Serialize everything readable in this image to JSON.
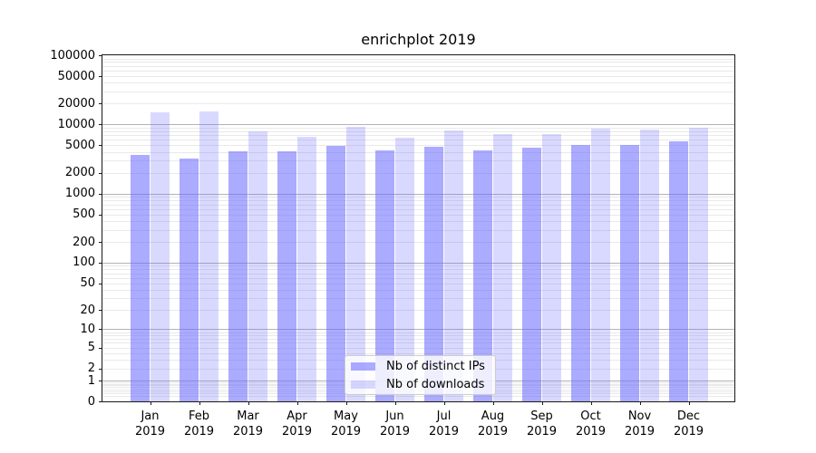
{
  "title": "enrichplot 2019",
  "chart_data": {
    "type": "bar",
    "title": "enrichplot 2019",
    "categories": [
      "Jan",
      "Feb",
      "Mar",
      "Apr",
      "May",
      "Jun",
      "Jul",
      "Aug",
      "Sep",
      "Oct",
      "Nov",
      "Dec"
    ],
    "year_label": "2019",
    "series": [
      {
        "name": "Nb of distinct IPs",
        "color": "#6666ff",
        "alpha": 0.55,
        "values": [
          3610,
          3270,
          4120,
          4120,
          4990,
          4200,
          4730,
          4290,
          4640,
          5140,
          5140,
          5680
        ]
      },
      {
        "name": "Nb of downloads",
        "color": "#6666ff",
        "alpha": 0.25,
        "values": [
          14850,
          15640,
          7950,
          6700,
          9190,
          6400,
          8170,
          7200,
          7380,
          8650,
          8500,
          9020
        ]
      }
    ],
    "y_scale": "log10(value+1)",
    "y_ticks": [
      0,
      1,
      2,
      5,
      10,
      20,
      50,
      100,
      200,
      500,
      1000,
      2000,
      5000,
      10000,
      20000,
      50000,
      100000
    ],
    "ylim": [
      0,
      100000
    ],
    "xlabel": "",
    "ylabel": "",
    "grid": "horizontal",
    "legend_position": "lower-center-inside",
    "colors": {
      "major_grid": "#b3b3b3",
      "minor_grid": "#e9e9e9",
      "axis_frame": "#1a1a1a",
      "background": "#ffffff",
      "bar_distinct_ips": "rgba(102,102,255,0.55)",
      "bar_downloads": "rgba(102,102,255,0.25)"
    }
  },
  "legend": {
    "items": [
      {
        "label": "Nb of distinct IPs"
      },
      {
        "label": "Nb of downloads"
      }
    ]
  }
}
